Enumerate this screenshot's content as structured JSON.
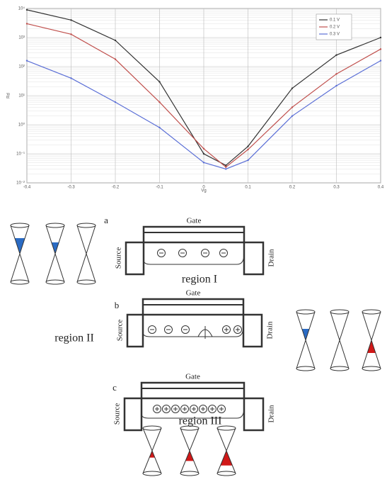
{
  "chart_data": {
    "type": "line",
    "x_label": "Vg",
    "y_label": "Rd",
    "x": [
      -0.4,
      -0.3,
      -0.2,
      -0.1,
      0,
      0.05,
      0.1,
      0.2,
      0.3,
      0.4
    ],
    "series": [
      {
        "name": "0.1 V",
        "color": "#333333",
        "values": [
          9000,
          4000,
          800,
          30,
          0.1,
          0.04,
          0.18,
          18,
          250,
          1000
        ]
      },
      {
        "name": "0.2 V",
        "color": "#c0504d",
        "values": [
          3000,
          1300,
          180,
          6,
          0.15,
          0.035,
          0.14,
          4,
          56,
          400
        ]
      },
      {
        "name": "0.3 V",
        "color": "#5b6fd6",
        "values": [
          160,
          40,
          6,
          0.8,
          0.05,
          0.03,
          0.06,
          2,
          22,
          160
        ]
      }
    ],
    "xlim": [
      -0.4,
      0.4
    ],
    "xticks": [
      -0.4,
      -0.3,
      -0.2,
      -0.1,
      0,
      0.1,
      0.2,
      0.3,
      0.4
    ],
    "ylim": [
      0.01,
      10000
    ],
    "log_y": true,
    "grid": true,
    "legend": "upper right",
    "yticks": [
      {
        "value": 0.01,
        "label": "10⁻²"
      },
      {
        "value": 0.1,
        "label": "10⁻¹"
      },
      {
        "value": 1,
        "label": "10⁰"
      },
      {
        "value": 10,
        "label": "10¹"
      },
      {
        "value": 100,
        "label": "10²"
      },
      {
        "value": 1000,
        "label": "10³"
      },
      {
        "value": 10000,
        "label": "10⁴"
      }
    ]
  },
  "diagrams": {
    "a": {
      "label": "a",
      "gate": "Gate",
      "source": "Source",
      "drain": "Drain",
      "region": "region I"
    },
    "b": {
      "label": "b",
      "gate": "Gate",
      "source": "Source",
      "drain": "Drain",
      "region": "region II"
    },
    "c": {
      "label": "c",
      "gate": "Gate",
      "source": "Source",
      "drain": "Drain",
      "region": "region III"
    }
  }
}
